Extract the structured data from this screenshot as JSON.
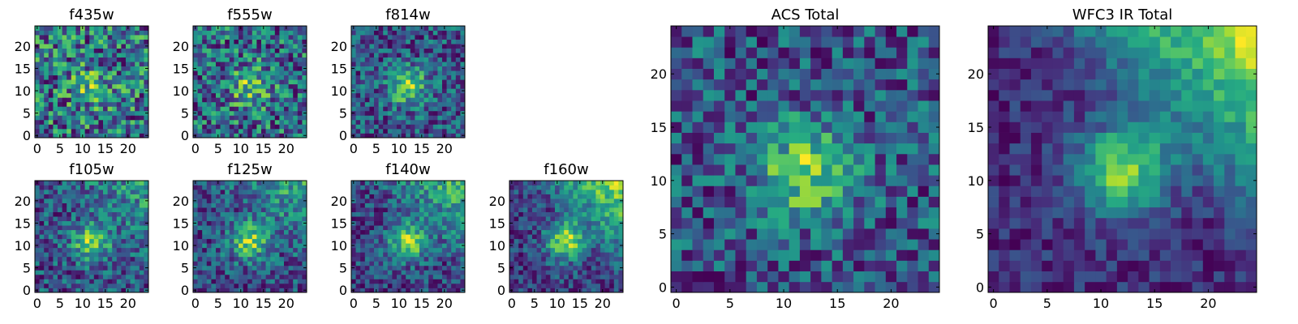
{
  "figure": {
    "colormap": "viridis",
    "colors": {
      "low": "#440154",
      "mid": "#21918c",
      "high": "#fde725"
    }
  },
  "chart_data": [
    {
      "type": "heatmap",
      "title": "f435w",
      "grid_size": 25,
      "seed": 11,
      "blob": 0.25,
      "gradient": 0.0,
      "noise": 0.75,
      "xticks": [
        0,
        5,
        10,
        15,
        20
      ],
      "yticks": [
        0,
        5,
        10,
        15,
        20
      ],
      "xlim": [
        -0.5,
        24.5
      ],
      "ylim": [
        -0.5,
        24.5
      ]
    },
    {
      "type": "heatmap",
      "title": "f555w",
      "grid_size": 25,
      "seed": 23,
      "blob": 0.35,
      "gradient": 0.0,
      "noise": 0.7,
      "xticks": [
        0,
        5,
        10,
        15,
        20
      ],
      "yticks": [
        0,
        5,
        10,
        15,
        20
      ],
      "xlim": [
        -0.5,
        24.5
      ],
      "ylim": [
        -0.5,
        24.5
      ]
    },
    {
      "type": "heatmap",
      "title": "f814w",
      "grid_size": 25,
      "seed": 37,
      "blob": 0.55,
      "gradient": 0.0,
      "noise": 0.6,
      "xticks": [
        0,
        5,
        10,
        15,
        20
      ],
      "yticks": [
        0,
        5,
        10,
        15,
        20
      ],
      "xlim": [
        -0.5,
        24.5
      ],
      "ylim": [
        -0.5,
        24.5
      ]
    },
    {
      "type": "heatmap",
      "title": "f105w",
      "grid_size": 25,
      "seed": 41,
      "blob": 0.5,
      "gradient": 0.25,
      "noise": 0.5,
      "xticks": [
        0,
        5,
        10,
        15,
        20
      ],
      "yticks": [
        0,
        5,
        10,
        15,
        20
      ],
      "xlim": [
        -0.5,
        24.5
      ],
      "ylim": [
        -0.5,
        24.5
      ]
    },
    {
      "type": "heatmap",
      "title": "f125w",
      "grid_size": 25,
      "seed": 53,
      "blob": 0.55,
      "gradient": 0.35,
      "noise": 0.5,
      "xticks": [
        0,
        5,
        10,
        15,
        20
      ],
      "yticks": [
        0,
        5,
        10,
        15,
        20
      ],
      "xlim": [
        -0.5,
        24.5
      ],
      "ylim": [
        -0.5,
        24.5
      ]
    },
    {
      "type": "heatmap",
      "title": "f140w",
      "grid_size": 25,
      "seed": 67,
      "blob": 0.6,
      "gradient": 0.45,
      "noise": 0.45,
      "xticks": [
        0,
        5,
        10,
        15,
        20
      ],
      "yticks": [
        0,
        5,
        10,
        15,
        20
      ],
      "xlim": [
        -0.5,
        24.5
      ],
      "ylim": [
        -0.5,
        24.5
      ]
    },
    {
      "type": "heatmap",
      "title": "f160w",
      "grid_size": 25,
      "seed": 79,
      "blob": 0.65,
      "gradient": 0.6,
      "noise": 0.4,
      "xticks": [
        0,
        5,
        10,
        15,
        20
      ],
      "yticks": [
        0,
        5,
        10,
        15,
        20
      ],
      "xlim": [
        -0.5,
        24.5
      ],
      "ylim": [
        -0.5,
        24.5
      ]
    },
    {
      "type": "heatmap",
      "title": "ACS Total",
      "grid_size": 25,
      "seed": 97,
      "blob": 0.45,
      "gradient": 0.0,
      "noise": 0.45,
      "xticks": [
        0,
        5,
        10,
        15,
        20
      ],
      "yticks": [
        0,
        5,
        10,
        15,
        20
      ],
      "xlim": [
        -0.5,
        24.5
      ],
      "ylim": [
        -0.5,
        24.5
      ]
    },
    {
      "type": "heatmap",
      "title": "WFC3 IR Total",
      "grid_size": 25,
      "seed": 113,
      "blob": 0.6,
      "gradient": 0.65,
      "noise": 0.25,
      "xticks": [
        0,
        5,
        10,
        15,
        20
      ],
      "yticks": [
        0,
        5,
        10,
        15,
        20
      ],
      "xlim": [
        -0.5,
        24.5
      ],
      "ylim": [
        -0.5,
        24.5
      ]
    }
  ]
}
